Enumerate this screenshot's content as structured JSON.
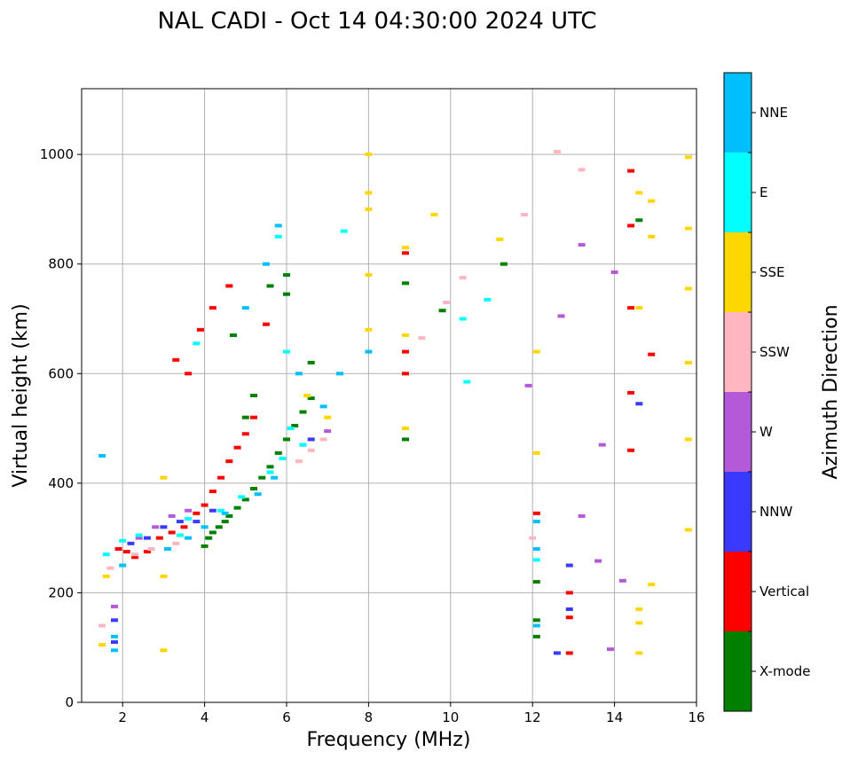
{
  "chart_data": {
    "type": "scatter",
    "title": "NAL CADI - Oct 14 04:30:00 2024 UTC",
    "xlabel": "Frequency (MHz)",
    "ylabel": "Virtual height (km)",
    "xlim": [
      1,
      16
    ],
    "ylim": [
      0,
      1120
    ],
    "xticks": [
      2,
      4,
      6,
      8,
      10,
      12,
      14,
      16
    ],
    "yticks": [
      0,
      200,
      400,
      600,
      800,
      1000
    ],
    "grid": true,
    "colorbar": {
      "label": "Azimuth Direction",
      "categories": [
        {
          "name": "X-mode",
          "color": "#008000"
        },
        {
          "name": "Vertical",
          "color": "#ff0000"
        },
        {
          "name": "NNW",
          "color": "#3a3aff"
        },
        {
          "name": "W",
          "color": "#b45ad8"
        },
        {
          "name": "SSW",
          "color": "#ffb6c1"
        },
        {
          "name": "SSE",
          "color": "#ffd700"
        },
        {
          "name": "E",
          "color": "#00ffff"
        },
        {
          "name": "NNE",
          "color": "#00bfff"
        }
      ]
    },
    "series": [
      {
        "name": "X-mode",
        "points": [
          [
            4.0,
            285
          ],
          [
            4.1,
            300
          ],
          [
            4.2,
            310
          ],
          [
            4.35,
            320
          ],
          [
            4.5,
            330
          ],
          [
            4.6,
            340
          ],
          [
            4.8,
            355
          ],
          [
            5.0,
            370
          ],
          [
            5.2,
            390
          ],
          [
            5.4,
            410
          ],
          [
            5.6,
            430
          ],
          [
            5.8,
            455
          ],
          [
            6.0,
            480
          ],
          [
            6.2,
            505
          ],
          [
            6.4,
            530
          ],
          [
            6.6,
            555
          ],
          [
            5.0,
            520
          ],
          [
            5.2,
            560
          ],
          [
            4.7,
            670
          ],
          [
            5.6,
            760
          ],
          [
            6.0,
            780
          ],
          [
            6.0,
            745
          ],
          [
            6.6,
            620
          ],
          [
            8.9,
            765
          ],
          [
            9.8,
            715
          ],
          [
            8.9,
            480
          ],
          [
            12.1,
            220
          ],
          [
            12.1,
            150
          ],
          [
            12.1,
            120
          ],
          [
            11.3,
            800
          ],
          [
            14.6,
            880
          ]
        ]
      },
      {
        "name": "Vertical",
        "points": [
          [
            1.9,
            280
          ],
          [
            2.1,
            275
          ],
          [
            2.3,
            265
          ],
          [
            2.6,
            275
          ],
          [
            2.9,
            300
          ],
          [
            3.2,
            310
          ],
          [
            3.5,
            320
          ],
          [
            3.8,
            345
          ],
          [
            4.0,
            360
          ],
          [
            4.2,
            385
          ],
          [
            4.4,
            410
          ],
          [
            4.6,
            440
          ],
          [
            4.8,
            465
          ],
          [
            5.0,
            490
          ],
          [
            5.2,
            520
          ],
          [
            3.6,
            600
          ],
          [
            3.3,
            625
          ],
          [
            3.9,
            680
          ],
          [
            4.2,
            720
          ],
          [
            4.6,
            760
          ],
          [
            5.5,
            690
          ],
          [
            12.9,
            200
          ],
          [
            12.9,
            155
          ],
          [
            12.9,
            90
          ],
          [
            14.4,
            970
          ],
          [
            14.4,
            870
          ],
          [
            14.4,
            720
          ],
          [
            14.4,
            565
          ],
          [
            14.4,
            460
          ],
          [
            14.9,
            635
          ],
          [
            8.9,
            820
          ],
          [
            8.9,
            640
          ],
          [
            8.9,
            600
          ],
          [
            12.1,
            345
          ]
        ]
      },
      {
        "name": "NNW",
        "points": [
          [
            1.8,
            150
          ],
          [
            1.8,
            110
          ],
          [
            2.2,
            290
          ],
          [
            2.6,
            300
          ],
          [
            3.0,
            320
          ],
          [
            3.4,
            330
          ],
          [
            3.8,
            330
          ],
          [
            4.2,
            350
          ],
          [
            6.4,
            470
          ],
          [
            6.6,
            480
          ],
          [
            12.9,
            250
          ],
          [
            12.9,
            170
          ],
          [
            12.6,
            90
          ],
          [
            14.6,
            545
          ]
        ]
      },
      {
        "name": "W",
        "points": [
          [
            1.8,
            175
          ],
          [
            2.4,
            300
          ],
          [
            2.8,
            320
          ],
          [
            3.2,
            340
          ],
          [
            3.6,
            350
          ],
          [
            7.0,
            495
          ],
          [
            12.7,
            705
          ],
          [
            13.2,
            835
          ],
          [
            13.7,
            470
          ],
          [
            13.6,
            258
          ],
          [
            13.2,
            340
          ],
          [
            14.0,
            785
          ],
          [
            13.9,
            97
          ],
          [
            14.2,
            222
          ],
          [
            11.9,
            578
          ]
        ]
      },
      {
        "name": "SSW",
        "points": [
          [
            1.5,
            140
          ],
          [
            1.7,
            245
          ],
          [
            2.3,
            270
          ],
          [
            2.7,
            280
          ],
          [
            3.3,
            290
          ],
          [
            6.3,
            440
          ],
          [
            6.6,
            460
          ],
          [
            6.9,
            480
          ],
          [
            9.3,
            665
          ],
          [
            9.9,
            730
          ],
          [
            10.3,
            775
          ],
          [
            12.0,
            300
          ],
          [
            12.6,
            1005
          ],
          [
            13.2,
            972
          ],
          [
            11.8,
            890
          ]
        ]
      },
      {
        "name": "SSE",
        "points": [
          [
            1.6,
            230
          ],
          [
            1.5,
            105
          ],
          [
            3.0,
            410
          ],
          [
            3.0,
            230
          ],
          [
            3.0,
            95
          ],
          [
            8.0,
            1000
          ],
          [
            8.0,
            930
          ],
          [
            8.0,
            900
          ],
          [
            8.0,
            780
          ],
          [
            8.0,
            680
          ],
          [
            8.9,
            830
          ],
          [
            8.9,
            670
          ],
          [
            8.9,
            500
          ],
          [
            9.6,
            890
          ],
          [
            11.2,
            845
          ],
          [
            12.1,
            640
          ],
          [
            12.1,
            455
          ],
          [
            14.6,
            930
          ],
          [
            14.9,
            915
          ],
          [
            14.9,
            850
          ],
          [
            14.6,
            720
          ],
          [
            14.6,
            170
          ],
          [
            14.6,
            145
          ],
          [
            14.6,
            90
          ],
          [
            14.9,
            215
          ],
          [
            15.8,
            995
          ],
          [
            15.8,
            865
          ],
          [
            15.8,
            755
          ],
          [
            15.8,
            620
          ],
          [
            15.8,
            480
          ],
          [
            15.8,
            315
          ],
          [
            6.5,
            560
          ],
          [
            7.0,
            520
          ]
        ]
      },
      {
        "name": "E",
        "points": [
          [
            1.6,
            270
          ],
          [
            2.0,
            295
          ],
          [
            2.4,
            305
          ],
          [
            3.4,
            305
          ],
          [
            3.6,
            335
          ],
          [
            4.4,
            350
          ],
          [
            4.9,
            375
          ],
          [
            5.6,
            420
          ],
          [
            5.9,
            445
          ],
          [
            6.1,
            500
          ],
          [
            6.4,
            470
          ],
          [
            3.8,
            655
          ],
          [
            5.8,
            850
          ],
          [
            6.0,
            640
          ],
          [
            7.4,
            860
          ],
          [
            10.3,
            700
          ],
          [
            10.9,
            735
          ],
          [
            10.4,
            585
          ],
          [
            12.1,
            260
          ]
        ]
      },
      {
        "name": "NNE",
        "points": [
          [
            1.8,
            120
          ],
          [
            1.8,
            95
          ],
          [
            1.5,
            450
          ],
          [
            2.0,
            250
          ],
          [
            3.1,
            280
          ],
          [
            3.6,
            300
          ],
          [
            4.0,
            320
          ],
          [
            4.5,
            345
          ],
          [
            5.3,
            380
          ],
          [
            5.7,
            410
          ],
          [
            5.8,
            870
          ],
          [
            5.5,
            800
          ],
          [
            5.0,
            720
          ],
          [
            6.3,
            600
          ],
          [
            6.9,
            540
          ],
          [
            7.3,
            600
          ],
          [
            12.1,
            330
          ],
          [
            12.1,
            280
          ],
          [
            12.1,
            140
          ],
          [
            8.0,
            640
          ]
        ]
      }
    ]
  }
}
